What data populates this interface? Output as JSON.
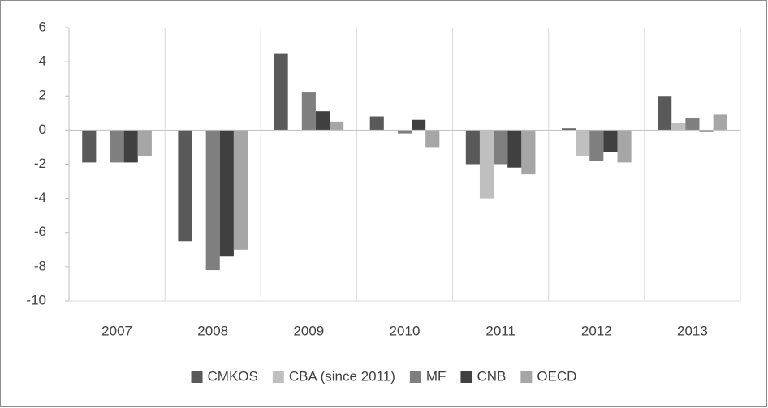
{
  "chart_data": {
    "type": "bar",
    "categories": [
      "2007",
      "2008",
      "2009",
      "2010",
      "2011",
      "2012",
      "2013"
    ],
    "series": [
      {
        "name": "CMKOS",
        "color": "#595959",
        "values": [
          -1.9,
          -6.5,
          4.5,
          0.8,
          -2.0,
          0.1,
          2.0
        ]
      },
      {
        "name": "CBA (since 2011)",
        "color": "#bfbfbf",
        "values": [
          null,
          null,
          null,
          null,
          -4.0,
          -1.5,
          0.4
        ]
      },
      {
        "name": "MF",
        "color": "#7f7f7f",
        "values": [
          -1.9,
          -8.2,
          2.2,
          -0.2,
          -2.0,
          -1.8,
          0.7
        ]
      },
      {
        "name": "CNB",
        "color": "#404040",
        "values": [
          -1.9,
          -7.4,
          1.1,
          0.6,
          -2.2,
          -1.3,
          -0.1
        ]
      },
      {
        "name": "OECD",
        "color": "#a6a6a6",
        "values": [
          -1.5,
          -7.0,
          0.5,
          -1.0,
          -2.6,
          -1.9,
          0.9
        ]
      }
    ],
    "ylim": [
      -10,
      6
    ],
    "yticks": [
      -10,
      -8,
      -6,
      -4,
      -2,
      0,
      2,
      4,
      6
    ],
    "grid": true,
    "legend": "bottom"
  }
}
